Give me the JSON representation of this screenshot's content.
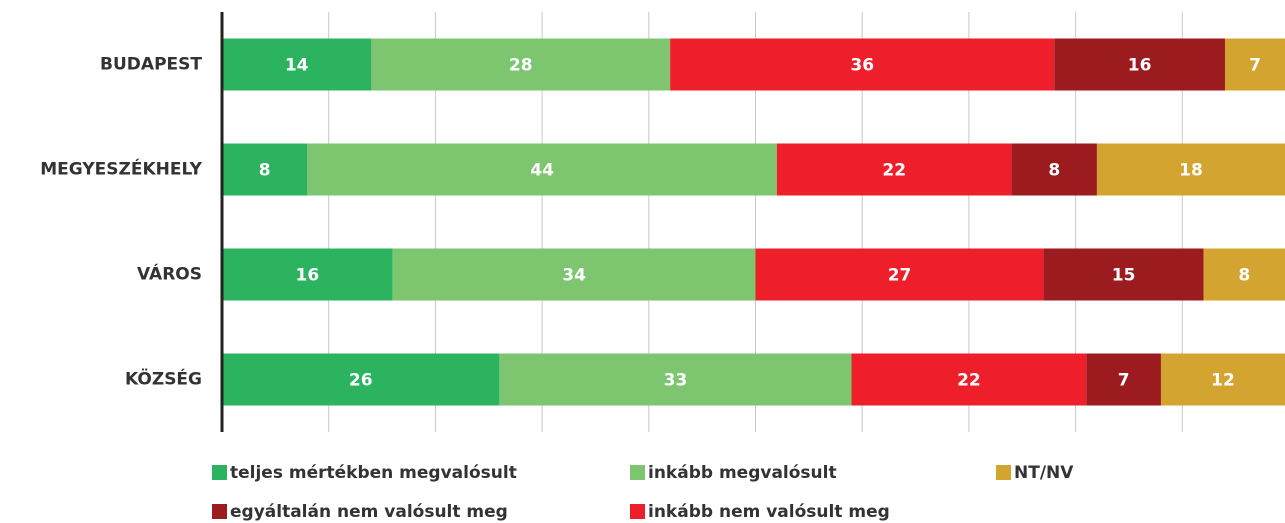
{
  "chart_data": {
    "type": "stacked_bar_horizontal",
    "categories": [
      "BUDAPEST",
      "MEGYESZÉKHELY",
      "VÁROS",
      "KÖZSÉG"
    ],
    "series": [
      {
        "name": "teljes mértékben megvalósult",
        "color": "#2bb35f",
        "values": [
          14,
          8,
          16,
          26
        ]
      },
      {
        "name": "inkább megvalósult",
        "color": "#7dc56f",
        "values": [
          28,
          44,
          34,
          33
        ]
      },
      {
        "name": "inkább nem valósult meg",
        "color": "#ee1f2a",
        "values": [
          36,
          22,
          27,
          22
        ]
      },
      {
        "name": "egyáltalán nem valósult meg",
        "color": "#9b1b1f",
        "values": [
          16,
          8,
          15,
          7
        ]
      },
      {
        "name": "NT/NV",
        "color": "#d4a431",
        "values": [
          7,
          18,
          8,
          12
        ]
      }
    ],
    "xlim": [
      0,
      100
    ],
    "xticks": [
      10,
      20,
      30,
      40,
      50,
      60,
      70,
      80,
      90
    ],
    "grid": true
  }
}
